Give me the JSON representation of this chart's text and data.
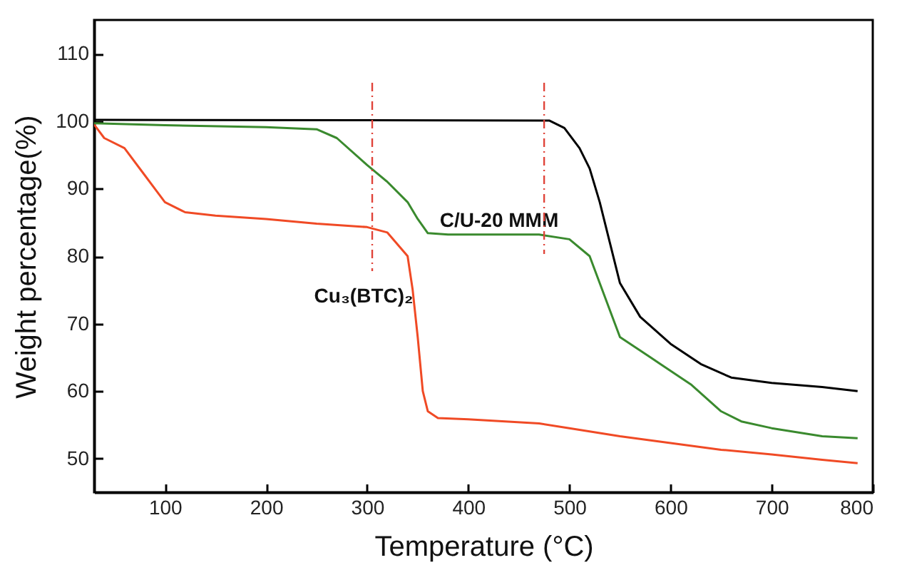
{
  "chart_data": {
    "type": "line",
    "xlabel": "Temperature (°C)",
    "ylabel": "Weight percentage(%)",
    "xlim": [
      30,
      800
    ],
    "ylim": [
      45,
      115
    ],
    "xticks": [
      100,
      200,
      300,
      400,
      500,
      600,
      700,
      800
    ],
    "yticks": [
      50,
      60,
      70,
      80,
      90,
      100,
      110
    ],
    "grid": false,
    "legend": false,
    "marker": "none",
    "line_style": "solid",
    "series": [
      {
        "color": "#000000",
        "x": [
          30,
          480,
          495,
          510,
          520,
          530,
          540,
          550,
          570,
          600,
          630,
          660,
          700,
          750,
          785
        ],
        "values": [
          100.2,
          100.1,
          99,
          96,
          93,
          88,
          82,
          76,
          71,
          67,
          64,
          62,
          61.2,
          60.6,
          60
        ]
      },
      {
        "name": "C/U-20 MMM",
        "color": "#3a8a2e",
        "x": [
          30,
          100,
          200,
          250,
          270,
          300,
          320,
          340,
          350,
          360,
          380,
          470,
          500,
          520,
          540,
          550,
          580,
          620,
          650,
          670,
          700,
          750,
          785
        ],
        "values": [
          99.7,
          99.4,
          99.1,
          98.8,
          97.5,
          93.5,
          91,
          88,
          85.5,
          83.4,
          83.2,
          83.2,
          82.5,
          80,
          72,
          68,
          65,
          61,
          57,
          55.5,
          54.5,
          53.3,
          53
        ]
      },
      {
        "name": "Cu₃(BTC)₂",
        "color": "#f04a25",
        "x": [
          30,
          40,
          60,
          80,
          100,
          120,
          150,
          200,
          250,
          300,
          320,
          340,
          345,
          350,
          355,
          360,
          370,
          400,
          470,
          500,
          550,
          600,
          650,
          700,
          750,
          785
        ],
        "values": [
          99.5,
          97.5,
          96,
          92,
          88,
          86.5,
          86,
          85.5,
          84.8,
          84.3,
          83.5,
          80,
          75,
          68,
          60,
          57,
          56,
          55.8,
          55.2,
          54.5,
          53.3,
          52.3,
          51.3,
          50.6,
          49.8,
          49.3
        ]
      }
    ],
    "ref_lines": [
      {
        "axis": "x",
        "value": 305,
        "color": "#e0443a",
        "line_style": "dashdot"
      },
      {
        "axis": "x",
        "value": 475,
        "color": "#e0443a",
        "line_style": "dashdot"
      }
    ]
  }
}
